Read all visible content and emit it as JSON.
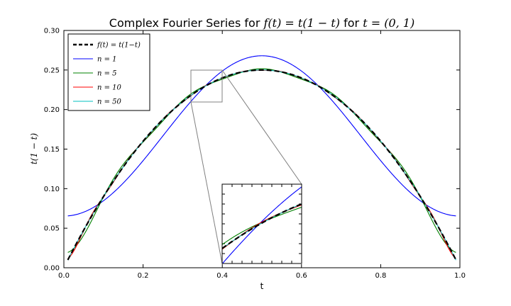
{
  "chart_data": {
    "type": "line",
    "title": {
      "prefix": "Complex Fourier Series for ",
      "func": "f(t) = t(1 − t)",
      "mid": " for ",
      "range": "t = (0, 1)"
    },
    "xlabel": "t",
    "ylabel": "t(1 − t)",
    "xlim": [
      0,
      1
    ],
    "ylim": [
      0,
      0.3
    ],
    "x_ticks": [
      "0.0",
      "0.2",
      "0.4",
      "0.6",
      "0.8",
      "1.0"
    ],
    "y_ticks": [
      "0.00",
      "0.05",
      "0.10",
      "0.15",
      "0.20",
      "0.25",
      "0.30"
    ],
    "x_range_plotted": [
      0.01,
      0.99
    ],
    "legend": {
      "placement": "top-left"
    },
    "series": [
      {
        "name": "f(t) = t(1−t)",
        "color": "#000000",
        "style": "dashed",
        "kind": "exact"
      },
      {
        "name": "n = 1",
        "color": "#0000ff",
        "style": "solid",
        "terms": 1
      },
      {
        "name": "n = 5",
        "color": "#008000",
        "style": "solid",
        "terms": 5
      },
      {
        "name": "n = 10",
        "color": "#ff0000",
        "style": "solid",
        "terms": 10
      },
      {
        "name": "n = 50",
        "color": "#00bfbf",
        "style": "solid",
        "terms": 50
      }
    ],
    "inset": {
      "xlim": [
        0.32,
        0.4
      ],
      "ylim": [
        0.21,
        0.25
      ],
      "series_drawn": [
        "f(t) = t(1−t)",
        "n = 1",
        "n = 5",
        "n = 10",
        "n = 50"
      ]
    }
  }
}
